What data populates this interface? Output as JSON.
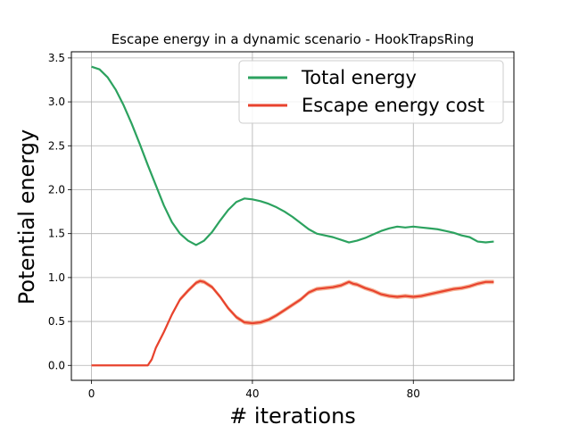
{
  "chart_data": {
    "type": "line",
    "title": "Escape energy in a dynamic scenario - HookTrapsRing",
    "xlabel": "# iterations",
    "ylabel": "Potential energy",
    "xlim": [
      -5,
      105
    ],
    "ylim": [
      -0.17,
      3.57
    ],
    "x_ticks": [
      0,
      40,
      80
    ],
    "y_ticks": [
      0.0,
      0.5,
      1.0,
      1.5,
      2.0,
      2.5,
      3.0,
      3.5
    ],
    "x_tick_labels": [
      "0",
      "40",
      "80"
    ],
    "y_tick_labels": [
      "0.0",
      "0.5",
      "1.0",
      "1.5",
      "2.0",
      "2.5",
      "3.0",
      "3.5"
    ],
    "grid": true,
    "legend_position": "top-right",
    "series": [
      {
        "name": "Total energy",
        "color": "#2ca25f",
        "x": [
          0,
          2,
          4,
          6,
          8,
          10,
          12,
          14,
          16,
          18,
          20,
          22,
          24,
          26,
          28,
          30,
          32,
          34,
          36,
          38,
          40,
          42,
          44,
          46,
          48,
          50,
          52,
          54,
          56,
          58,
          60,
          62,
          64,
          66,
          68,
          70,
          72,
          74,
          76,
          78,
          80,
          82,
          84,
          86,
          88,
          90,
          92,
          94,
          96,
          98,
          100
        ],
        "values": [
          3.4,
          3.37,
          3.28,
          3.14,
          2.96,
          2.75,
          2.52,
          2.28,
          2.05,
          1.82,
          1.63,
          1.5,
          1.42,
          1.37,
          1.42,
          1.52,
          1.65,
          1.77,
          1.86,
          1.9,
          1.89,
          1.87,
          1.84,
          1.8,
          1.75,
          1.69,
          1.62,
          1.55,
          1.5,
          1.48,
          1.46,
          1.43,
          1.4,
          1.42,
          1.45,
          1.49,
          1.53,
          1.56,
          1.58,
          1.57,
          1.58,
          1.57,
          1.56,
          1.55,
          1.53,
          1.51,
          1.48,
          1.46,
          1.41,
          1.4,
          1.41
        ]
      },
      {
        "name": "Escape energy cost",
        "color": "#e8432e",
        "band_color": "#f4a582",
        "x": [
          0,
          2,
          4,
          6,
          8,
          10,
          12,
          14,
          15,
          16,
          18,
          20,
          22,
          24,
          26,
          27,
          28,
          30,
          32,
          34,
          36,
          38,
          40,
          42,
          44,
          46,
          48,
          50,
          52,
          54,
          56,
          58,
          60,
          62,
          64,
          65,
          66,
          68,
          70,
          72,
          74,
          76,
          78,
          80,
          82,
          84,
          86,
          88,
          90,
          92,
          94,
          96,
          98,
          100
        ],
        "values": [
          0.0,
          0.0,
          0.0,
          0.0,
          0.0,
          0.0,
          0.0,
          0.0,
          0.07,
          0.2,
          0.38,
          0.58,
          0.75,
          0.85,
          0.94,
          0.96,
          0.95,
          0.89,
          0.78,
          0.65,
          0.55,
          0.49,
          0.48,
          0.49,
          0.52,
          0.57,
          0.63,
          0.69,
          0.75,
          0.83,
          0.87,
          0.88,
          0.89,
          0.91,
          0.95,
          0.93,
          0.92,
          0.88,
          0.85,
          0.81,
          0.79,
          0.78,
          0.79,
          0.78,
          0.79,
          0.81,
          0.83,
          0.85,
          0.87,
          0.88,
          0.9,
          0.93,
          0.95,
          0.95
        ],
        "band_spread": 0.025
      }
    ]
  }
}
